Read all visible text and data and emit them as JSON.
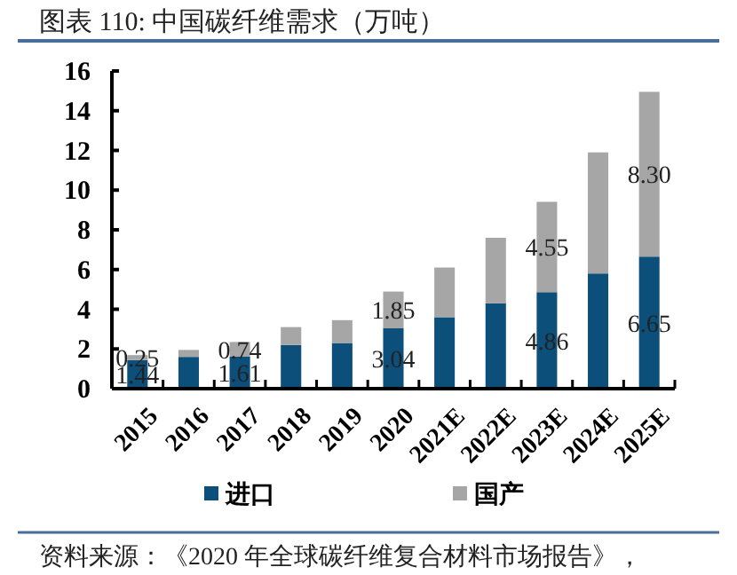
{
  "chart_data": {
    "type": "bar",
    "title": "图表 110: 中国碳纤维需求（万吨）",
    "stacked": true,
    "categories": [
      "2015",
      "2016",
      "2017",
      "2018",
      "2019",
      "2020",
      "2021E",
      "2022E",
      "2023E",
      "2024E",
      "2025E"
    ],
    "series": [
      {
        "name": "进口",
        "color": "#0b4f7a",
        "values": [
          1.44,
          1.6,
          1.61,
          2.2,
          2.3,
          3.04,
          3.6,
          4.3,
          4.86,
          5.8,
          6.65
        ],
        "value_labels": [
          "1.44",
          null,
          "1.61",
          null,
          null,
          "3.04",
          null,
          null,
          "4.86",
          null,
          "6.65"
        ]
      },
      {
        "name": "国产",
        "color": "#a6a6a6",
        "values": [
          0.25,
          0.35,
          0.74,
          0.9,
          1.15,
          1.85,
          2.5,
          3.3,
          4.55,
          6.1,
          8.3
        ],
        "value_labels": [
          "0.25",
          null,
          "0.74",
          null,
          null,
          "1.85",
          null,
          null,
          "4.55",
          null,
          "8.30"
        ]
      }
    ],
    "ylim": [
      0,
      16
    ],
    "yticks": [
      0,
      2,
      4,
      6,
      8,
      10,
      12,
      14,
      16
    ],
    "grid": false,
    "legend": "bottom",
    "annotations": [
      "资料来源：《2020 年全球碳纤维复合材料市场报告》，"
    ]
  }
}
